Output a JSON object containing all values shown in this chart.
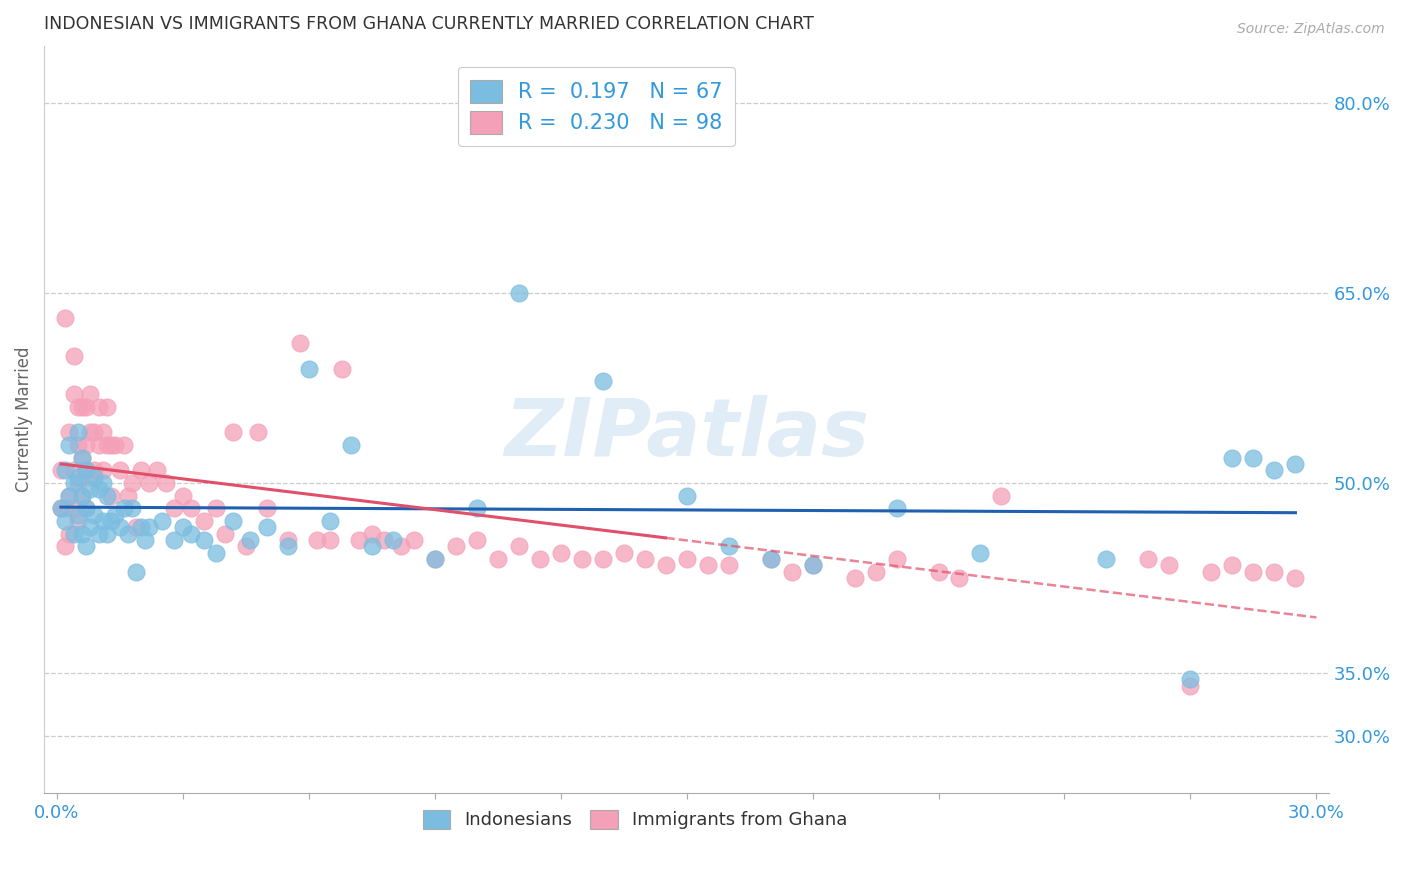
{
  "title": "INDONESIAN VS IMMIGRANTS FROM GHANA CURRENTLY MARRIED CORRELATION CHART",
  "source": "Source: ZipAtlas.com",
  "ylabel": "Currently Married",
  "xlim": [
    -0.003,
    0.303
  ],
  "ylim": [
    0.255,
    0.845
  ],
  "xtick_positions": [
    0.0,
    0.03,
    0.06,
    0.09,
    0.12,
    0.15,
    0.18,
    0.21,
    0.24,
    0.27,
    0.3
  ],
  "ytick_positions": [
    0.3,
    0.35,
    0.5,
    0.65,
    0.8
  ],
  "ytick_labels": [
    "30.0%",
    "35.0%",
    "50.0%",
    "65.0%",
    "80.0%"
  ],
  "blue_color": "#7bbde0",
  "pink_color": "#f4a0b8",
  "blue_line_color": "#2060b0",
  "pink_line_color": "#e0506a",
  "text_color": "#3399dd",
  "title_color": "#333333",
  "R_blue": 0.197,
  "N_blue": 67,
  "R_pink": 0.23,
  "N_pink": 98,
  "blue_scatter_x": [
    0.001,
    0.002,
    0.002,
    0.003,
    0.003,
    0.004,
    0.004,
    0.005,
    0.005,
    0.005,
    0.006,
    0.006,
    0.006,
    0.007,
    0.007,
    0.007,
    0.008,
    0.008,
    0.009,
    0.009,
    0.01,
    0.01,
    0.011,
    0.011,
    0.012,
    0.012,
    0.013,
    0.014,
    0.015,
    0.016,
    0.017,
    0.018,
    0.019,
    0.02,
    0.021,
    0.022,
    0.025,
    0.028,
    0.03,
    0.032,
    0.035,
    0.038,
    0.042,
    0.046,
    0.05,
    0.055,
    0.06,
    0.065,
    0.07,
    0.075,
    0.08,
    0.09,
    0.1,
    0.11,
    0.13,
    0.15,
    0.16,
    0.17,
    0.18,
    0.2,
    0.22,
    0.25,
    0.27,
    0.28,
    0.285,
    0.29,
    0.295
  ],
  "blue_scatter_y": [
    0.48,
    0.47,
    0.51,
    0.49,
    0.53,
    0.46,
    0.5,
    0.54,
    0.475,
    0.505,
    0.46,
    0.49,
    0.52,
    0.45,
    0.48,
    0.51,
    0.465,
    0.495,
    0.475,
    0.505,
    0.46,
    0.495,
    0.47,
    0.5,
    0.46,
    0.49,
    0.47,
    0.475,
    0.465,
    0.48,
    0.46,
    0.48,
    0.43,
    0.465,
    0.455,
    0.465,
    0.47,
    0.455,
    0.465,
    0.46,
    0.455,
    0.445,
    0.47,
    0.455,
    0.465,
    0.45,
    0.59,
    0.47,
    0.53,
    0.45,
    0.455,
    0.44,
    0.48,
    0.65,
    0.58,
    0.49,
    0.45,
    0.44,
    0.435,
    0.48,
    0.445,
    0.44,
    0.345,
    0.52,
    0.52,
    0.51,
    0.515
  ],
  "pink_scatter_x": [
    0.001,
    0.001,
    0.002,
    0.002,
    0.002,
    0.003,
    0.003,
    0.003,
    0.004,
    0.004,
    0.004,
    0.004,
    0.005,
    0.005,
    0.005,
    0.005,
    0.006,
    0.006,
    0.006,
    0.007,
    0.007,
    0.007,
    0.007,
    0.008,
    0.008,
    0.008,
    0.009,
    0.009,
    0.01,
    0.01,
    0.011,
    0.011,
    0.012,
    0.012,
    0.013,
    0.013,
    0.014,
    0.015,
    0.016,
    0.017,
    0.018,
    0.019,
    0.02,
    0.022,
    0.024,
    0.026,
    0.028,
    0.03,
    0.032,
    0.035,
    0.038,
    0.04,
    0.042,
    0.045,
    0.048,
    0.05,
    0.055,
    0.058,
    0.062,
    0.065,
    0.068,
    0.072,
    0.075,
    0.078,
    0.082,
    0.085,
    0.09,
    0.095,
    0.1,
    0.105,
    0.11,
    0.115,
    0.12,
    0.125,
    0.13,
    0.135,
    0.14,
    0.145,
    0.15,
    0.155,
    0.16,
    0.17,
    0.175,
    0.18,
    0.19,
    0.195,
    0.2,
    0.21,
    0.215,
    0.225,
    0.26,
    0.265,
    0.27,
    0.275,
    0.28,
    0.285,
    0.29,
    0.295
  ],
  "pink_scatter_y": [
    0.51,
    0.48,
    0.63,
    0.48,
    0.45,
    0.54,
    0.49,
    0.46,
    0.6,
    0.57,
    0.51,
    0.48,
    0.56,
    0.53,
    0.5,
    0.47,
    0.56,
    0.52,
    0.49,
    0.56,
    0.53,
    0.51,
    0.48,
    0.57,
    0.54,
    0.505,
    0.54,
    0.51,
    0.56,
    0.53,
    0.54,
    0.51,
    0.56,
    0.53,
    0.53,
    0.49,
    0.53,
    0.51,
    0.53,
    0.49,
    0.5,
    0.465,
    0.51,
    0.5,
    0.51,
    0.5,
    0.48,
    0.49,
    0.48,
    0.47,
    0.48,
    0.46,
    0.54,
    0.45,
    0.54,
    0.48,
    0.455,
    0.61,
    0.455,
    0.455,
    0.59,
    0.455,
    0.46,
    0.455,
    0.45,
    0.455,
    0.44,
    0.45,
    0.455,
    0.44,
    0.45,
    0.44,
    0.445,
    0.44,
    0.44,
    0.445,
    0.44,
    0.435,
    0.44,
    0.435,
    0.435,
    0.44,
    0.43,
    0.435,
    0.425,
    0.43,
    0.44,
    0.43,
    0.425,
    0.49,
    0.44,
    0.435,
    0.34,
    0.43,
    0.435,
    0.43,
    0.43,
    0.425
  ],
  "pink_line_solid_end": 0.145,
  "watermark_text": "ZIPatlas",
  "watermark_color": "#c8ddf0"
}
